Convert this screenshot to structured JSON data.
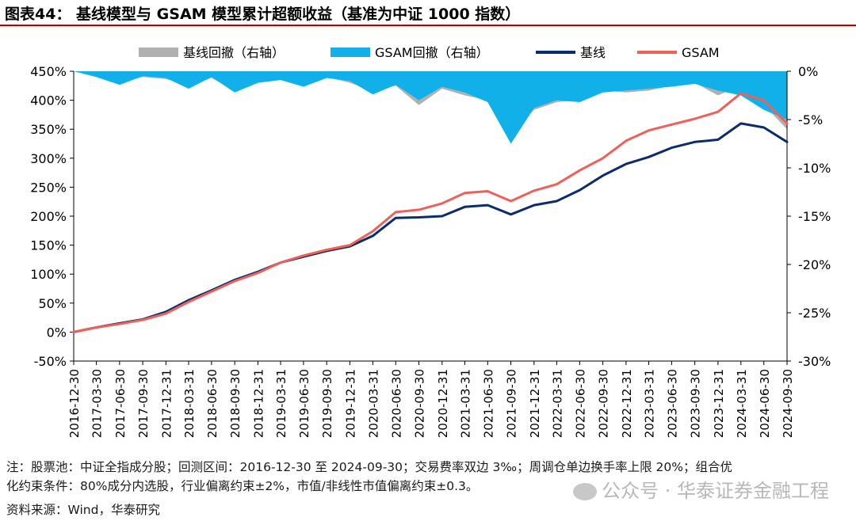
{
  "title": "图表44： 基线模型与 GSAM 模型累计超额收益（基准为中证 1000 指数）",
  "notes": {
    "line1": "注：股票池：中证全指成分股；回测区间：2016-12-30 至 2024-09-30；交易费率双边 3‰；周调仓单边换手率上限 20%；组合优",
    "line2": "化约束条件：80%成分内选股，行业偏离约束±2%，市值/非线性市值偏离约束±0.3。",
    "source": "资料来源：Wind，华泰研究"
  },
  "watermark": "公众号 · 华泰证券金融工程",
  "chart_data": {
    "type": "line",
    "legend": {
      "position": "top",
      "items": [
        "基线回撤（右轴）",
        "GSAM回撤（右轴）",
        "基线",
        "GSAM"
      ]
    },
    "x_ticks": [
      "2016-12-30",
      "2017-03-30",
      "2017-06-30",
      "2017-09-30",
      "2017-12-31",
      "2018-03-31",
      "2018-06-30",
      "2018-09-30",
      "2018-12-31",
      "2019-03-31",
      "2019-06-30",
      "2019-09-30",
      "2019-12-31",
      "2020-03-31",
      "2020-06-30",
      "2020-09-30",
      "2020-12-31",
      "2021-03-31",
      "2021-06-30",
      "2021-09-30",
      "2021-12-31",
      "2022-03-31",
      "2022-06-30",
      "2022-09-30",
      "2022-12-31",
      "2023-03-31",
      "2023-06-30",
      "2023-09-30",
      "2023-12-31",
      "2024-03-31",
      "2024-06-30",
      "2024-09-30"
    ],
    "y_left": {
      "ticks": [
        "450%",
        "400%",
        "350%",
        "300%",
        "250%",
        "200%",
        "150%",
        "100%",
        "50%",
        "0%",
        "-50%"
      ],
      "range": [
        -50,
        450
      ],
      "unit": "%"
    },
    "y_right": {
      "ticks": [
        "0%",
        "-5%",
        "-10%",
        "-15%",
        "-20%",
        "-25%",
        "-30%"
      ],
      "range": [
        -30,
        0
      ],
      "unit": "%"
    },
    "grid": false,
    "series": [
      {
        "name": "基线",
        "axis": "left",
        "color": "#0c2c6b",
        "dates": [
          "2016-12-30",
          "2017-03-30",
          "2017-06-30",
          "2017-09-30",
          "2017-12-31",
          "2018-03-31",
          "2018-06-30",
          "2018-09-30",
          "2018-12-31",
          "2019-03-31",
          "2019-06-30",
          "2019-09-30",
          "2019-12-31",
          "2020-03-31",
          "2020-06-30",
          "2020-09-30",
          "2020-12-31",
          "2021-03-31",
          "2021-06-30",
          "2021-09-30",
          "2021-12-31",
          "2022-03-31",
          "2022-06-30",
          "2022-09-30",
          "2022-12-31",
          "2023-03-31",
          "2023-06-30",
          "2023-09-30",
          "2023-12-31",
          "2024-03-31",
          "2024-06-30",
          "2024-09-30"
        ],
        "values": [
          0,
          8,
          15,
          22,
          35,
          55,
          72,
          90,
          104,
          120,
          130,
          140,
          148,
          166,
          197,
          198,
          200,
          216,
          219,
          203,
          219,
          226,
          245,
          270,
          290,
          302,
          318,
          328,
          332,
          360,
          353,
          328
        ]
      },
      {
        "name": "GSAM",
        "axis": "left",
        "color": "#f0605a",
        "dates": [
          "2016-12-30",
          "2017-03-30",
          "2017-06-30",
          "2017-09-30",
          "2017-12-31",
          "2018-03-31",
          "2018-06-30",
          "2018-09-30",
          "2018-12-31",
          "2019-03-31",
          "2019-06-30",
          "2019-09-30",
          "2019-12-31",
          "2020-03-31",
          "2020-06-30",
          "2020-09-30",
          "2020-12-31",
          "2021-03-31",
          "2021-06-30",
          "2021-09-30",
          "2021-12-31",
          "2022-03-31",
          "2022-06-30",
          "2022-09-30",
          "2022-12-31",
          "2023-03-31",
          "2023-06-30",
          "2023-09-30",
          "2023-12-31",
          "2024-03-31",
          "2024-06-30",
          "2024-09-30"
        ],
        "values": [
          0,
          8,
          14,
          21,
          32,
          52,
          70,
          88,
          102,
          120,
          132,
          142,
          150,
          174,
          207,
          211,
          222,
          240,
          243,
          226,
          244,
          255,
          279,
          300,
          330,
          348,
          358,
          368,
          380,
          412,
          400,
          360
        ]
      },
      {
        "name": "基线回撤（右轴）",
        "axis": "right",
        "type": "area",
        "color": "#b0b0b0",
        "dates": [
          "2016-12-30",
          "2017-03-30",
          "2017-06-30",
          "2017-09-30",
          "2017-12-31",
          "2018-03-31",
          "2018-06-30",
          "2018-09-30",
          "2018-12-31",
          "2019-03-31",
          "2019-06-30",
          "2019-09-30",
          "2019-12-31",
          "2020-03-31",
          "2020-06-30",
          "2020-09-30",
          "2020-12-31",
          "2021-03-31",
          "2021-06-30",
          "2021-09-30",
          "2021-12-31",
          "2022-03-31",
          "2022-06-30",
          "2022-09-30",
          "2022-12-31",
          "2023-03-31",
          "2023-06-30",
          "2023-09-30",
          "2023-12-31",
          "2024-03-31",
          "2024-06-30",
          "2024-09-30"
        ],
        "values": [
          0,
          -0.5,
          -1.2,
          -0.6,
          -0.8,
          -1.5,
          -0.7,
          -2.0,
          -1.0,
          -0.8,
          -1.5,
          -0.6,
          -1.2,
          -2.0,
          -1.5,
          -3.5,
          -1.8,
          -2.5,
          -3.0,
          -6.5,
          -4.0,
          -3.2,
          -3.0,
          -2.0,
          -2.2,
          -2.0,
          -1.5,
          -1.2,
          -2.5,
          -1.5,
          -3.5,
          -6.0
        ]
      },
      {
        "name": "GSAM回撤（右轴）",
        "axis": "right",
        "type": "area",
        "color": "#12b0e8",
        "dates": [
          "2016-12-30",
          "2017-03-30",
          "2017-06-30",
          "2017-09-30",
          "2017-12-31",
          "2018-03-31",
          "2018-06-30",
          "2018-09-30",
          "2018-12-31",
          "2019-03-31",
          "2019-06-30",
          "2019-09-30",
          "2019-12-31",
          "2020-03-31",
          "2020-06-30",
          "2020-09-30",
          "2020-12-31",
          "2021-03-31",
          "2021-06-30",
          "2021-09-30",
          "2021-12-31",
          "2022-03-31",
          "2022-06-30",
          "2022-09-30",
          "2022-12-31",
          "2023-03-31",
          "2023-06-30",
          "2023-09-30",
          "2023-12-31",
          "2024-03-31",
          "2024-06-30",
          "2024-09-30"
        ],
        "values": [
          0,
          -0.6,
          -1.4,
          -0.5,
          -0.7,
          -1.8,
          -0.6,
          -2.2,
          -1.2,
          -0.9,
          -1.6,
          -0.7,
          -1.0,
          -2.4,
          -1.4,
          -3.0,
          -1.6,
          -2.2,
          -3.2,
          -7.5,
          -3.8,
          -3.0,
          -3.2,
          -2.2,
          -2.0,
          -1.8,
          -1.6,
          -1.3,
          -2.0,
          -2.5,
          -4.0,
          -5.0
        ]
      }
    ]
  }
}
